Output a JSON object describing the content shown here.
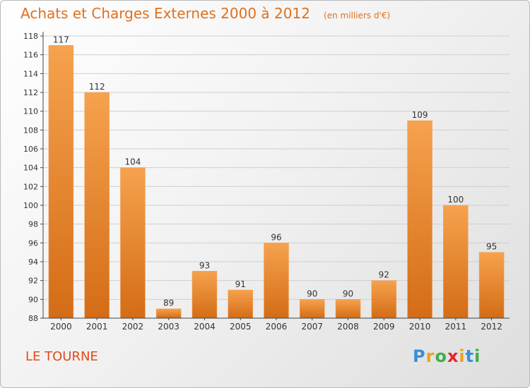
{
  "title": "Achats et Charges Externes 2000 à 2012",
  "unit_note": "(en milliers d'€)",
  "commune": "LE TOURNE",
  "logo": {
    "text": "Proxiti",
    "letters": [
      "P",
      "r",
      "o",
      "x",
      "i",
      "t",
      "i"
    ],
    "colors": [
      "#3a8fd6",
      "#f0a020",
      "#3fae49",
      "#e8242a",
      "#f0a020",
      "#3a8fd6",
      "#3fae49"
    ]
  },
  "colors": {
    "bar_light": "#f6a24e",
    "bar_dark": "#d46c16",
    "axis": "#444444",
    "grid": "#cfcfcf",
    "title": "#e0701e"
  },
  "chart_data": {
    "type": "bar",
    "categories": [
      "2000",
      "2001",
      "2002",
      "2003",
      "2004",
      "2005",
      "2006",
      "2007",
      "2008",
      "2009",
      "2010",
      "2011",
      "2012"
    ],
    "values": [
      117,
      112,
      104,
      89,
      93,
      91,
      96,
      90,
      90,
      92,
      109,
      100,
      95
    ],
    "ylim": [
      88,
      118
    ],
    "yticks": [
      88,
      90,
      92,
      94,
      96,
      98,
      100,
      102,
      104,
      106,
      108,
      110,
      112,
      114,
      116,
      118
    ],
    "grid": true,
    "legend": "none"
  }
}
